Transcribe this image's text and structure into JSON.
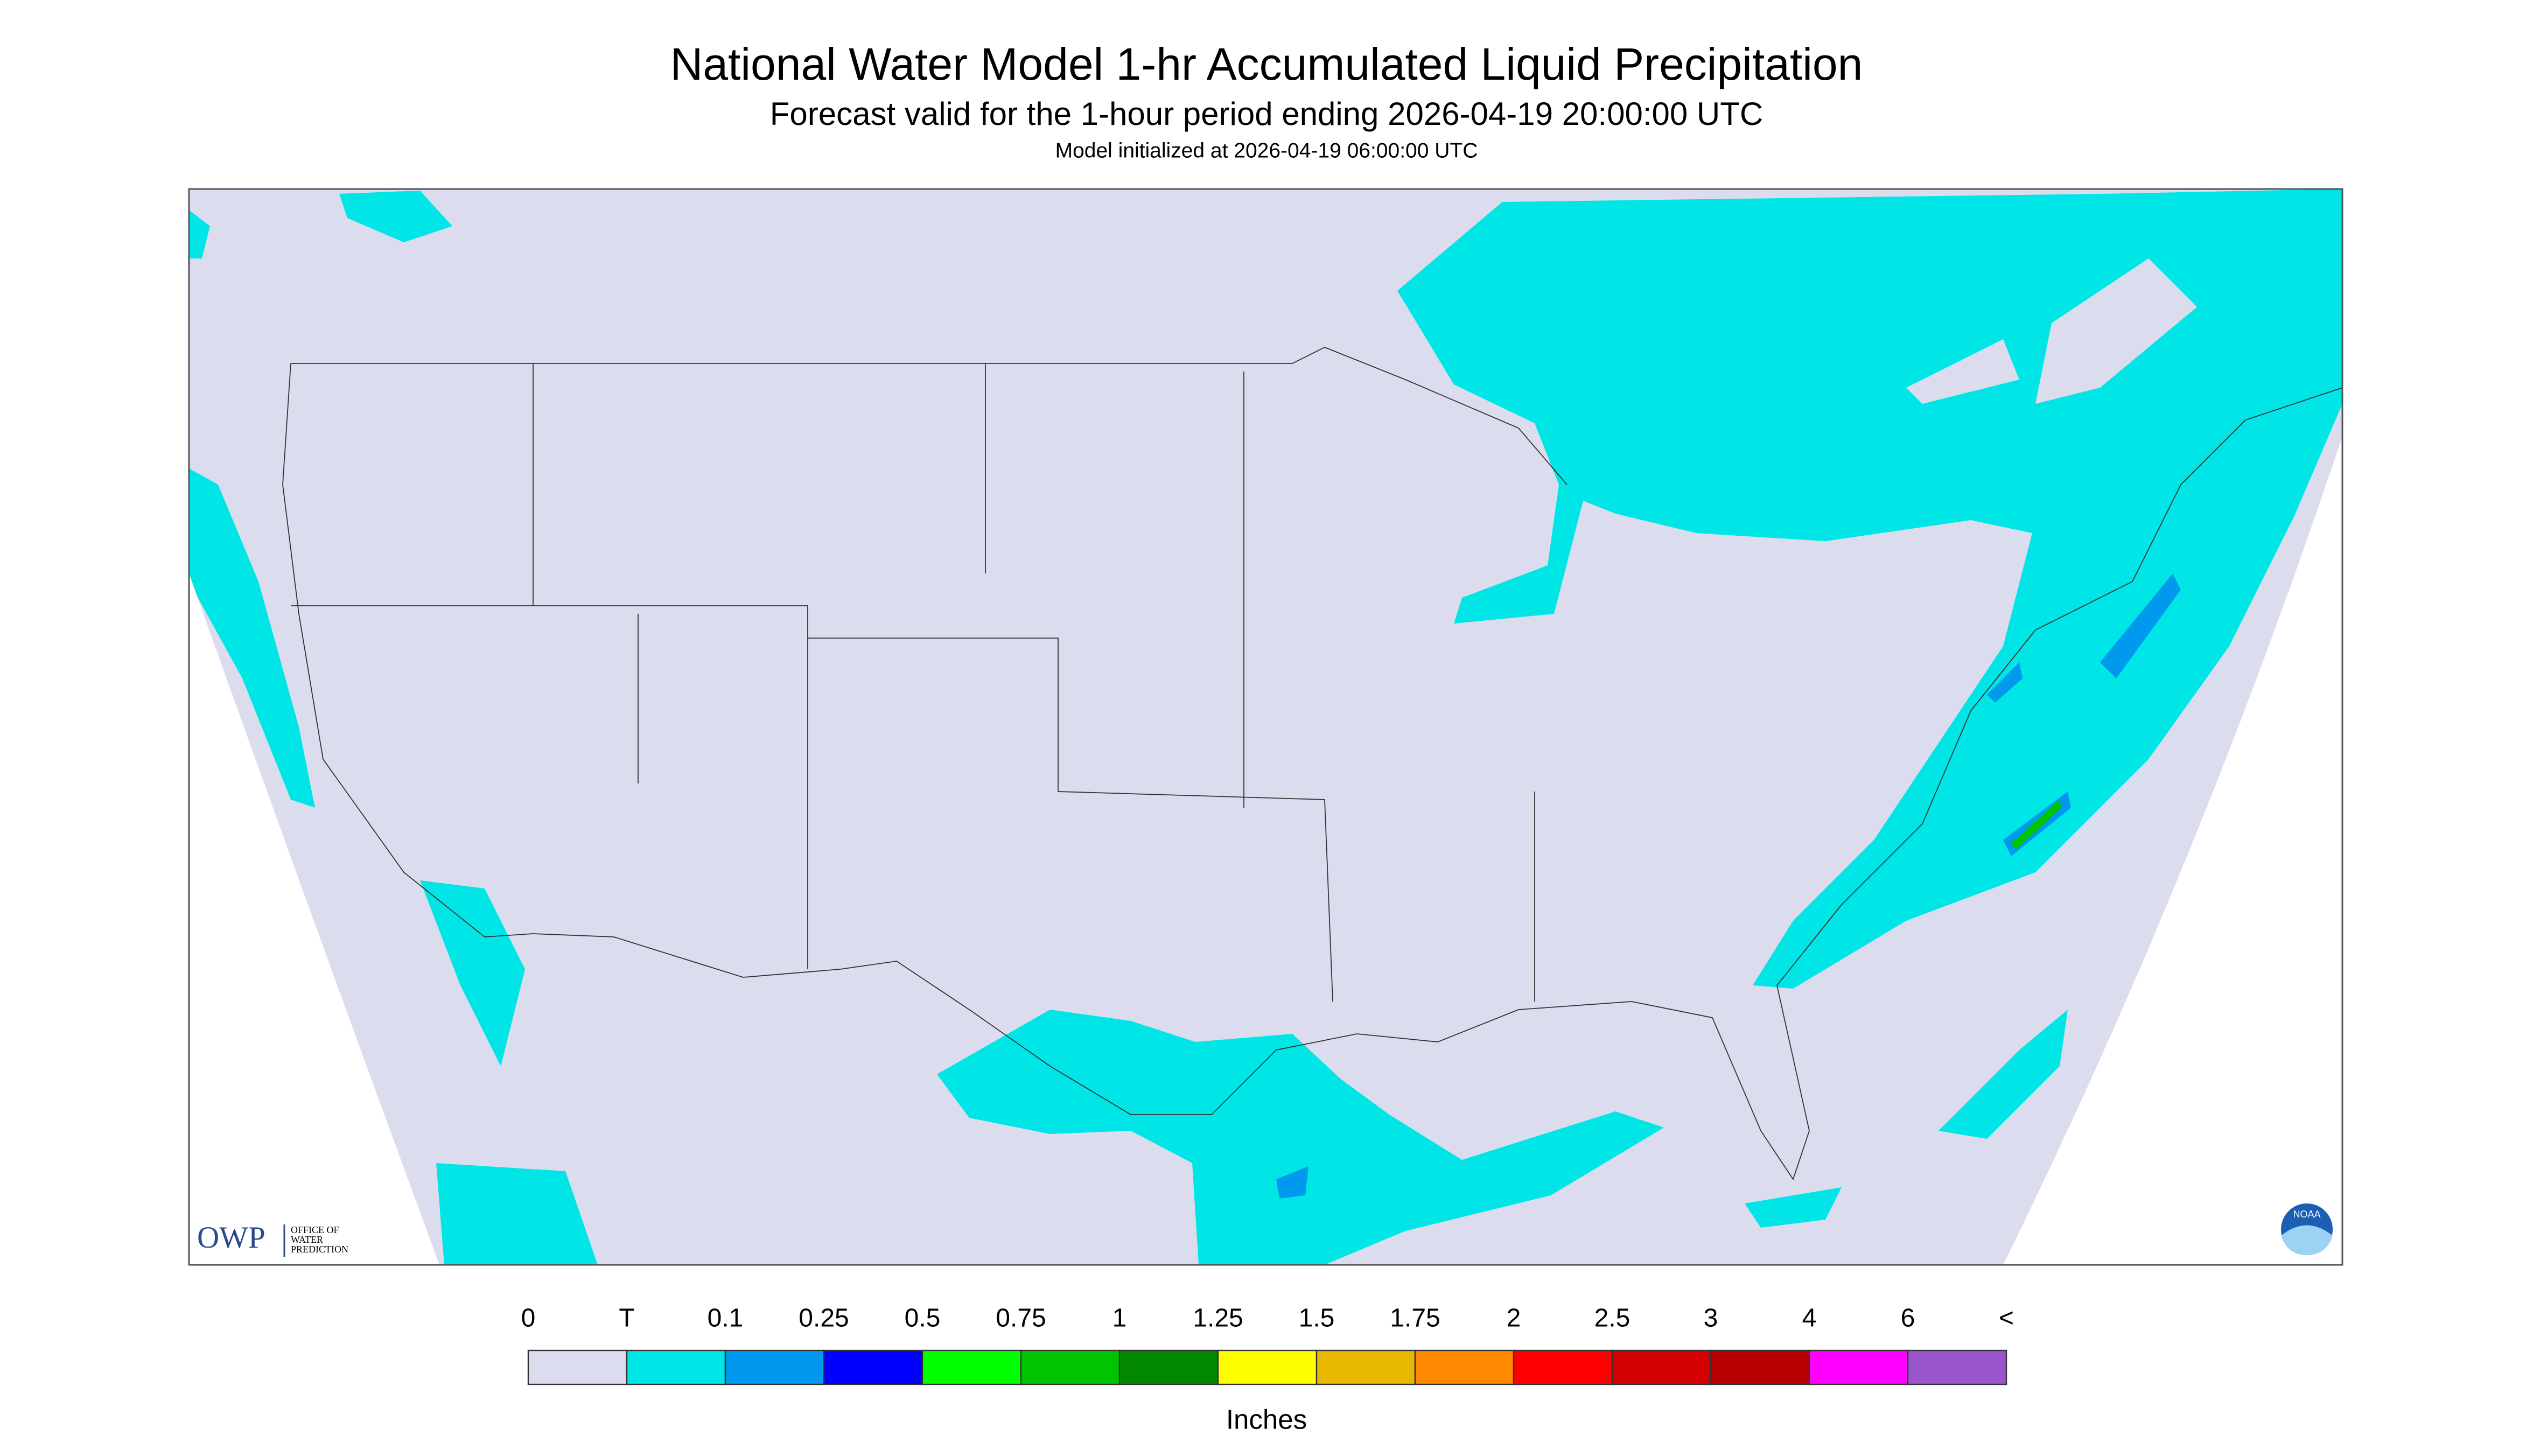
{
  "header": {
    "title": "National Water Model 1-hr Accumulated Liquid Precipitation",
    "subtitle": "Forecast valid for the 1-hour period ending 2026-04-19 20:00:00 UTC",
    "note": "Model initialized at 2026-04-19 06:00:00 UTC"
  },
  "legend": {
    "labels": [
      "0",
      "T",
      "0.1",
      "0.25",
      "0.5",
      "0.75",
      "1",
      "1.25",
      "1.5",
      "1.75",
      "2",
      "2.5",
      "3",
      "4",
      "6",
      "<"
    ],
    "colors": [
      "#dcdcef",
      "#00e6e6",
      "#0099ee",
      "#0000ff",
      "#00ff00",
      "#00c400",
      "#008800",
      "#ffff00",
      "#e6b800",
      "#ff8800",
      "#ff0000",
      "#d40000",
      "#b80000",
      "#ff00ff",
      "#9955cc"
    ],
    "unit": "Inches"
  },
  "logo": {
    "owp": "OWP",
    "office": [
      "OFFICE OF",
      "WATER",
      "PREDICTION"
    ],
    "noaa": "NOAA"
  }
}
